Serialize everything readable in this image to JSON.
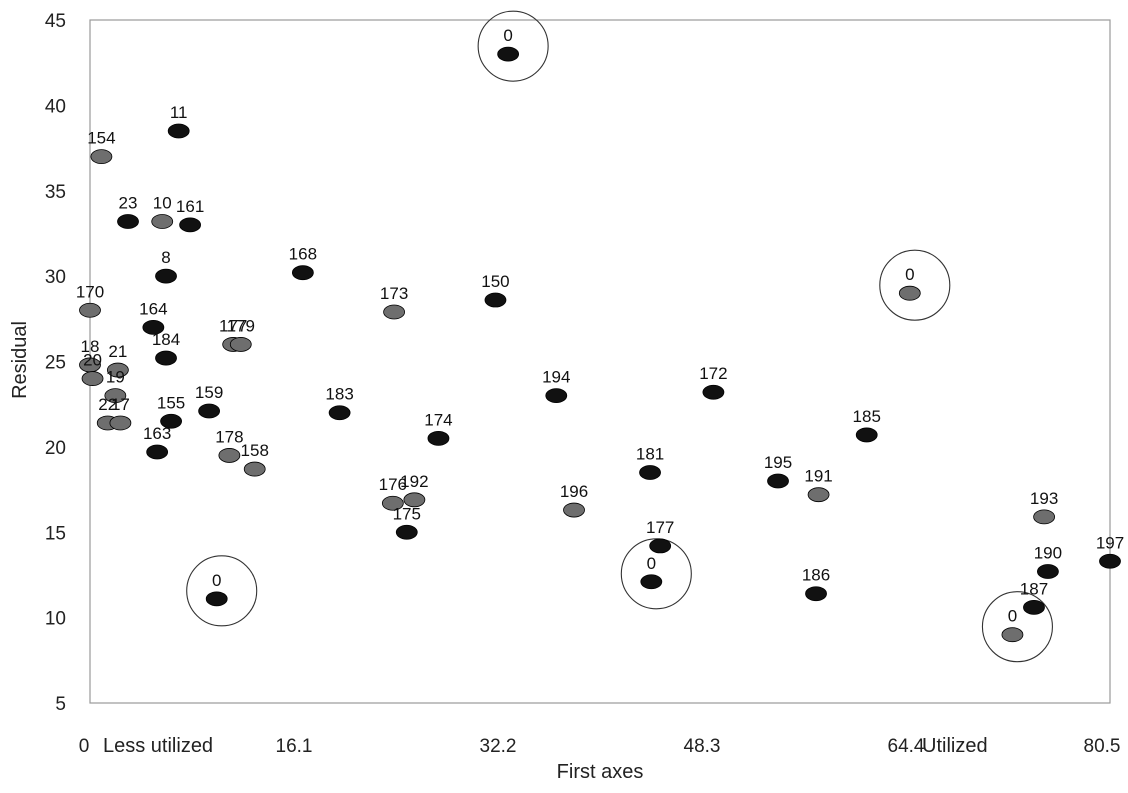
{
  "chart_data": {
    "type": "scatter",
    "xlabel": "First axes",
    "ylabel": "Residual",
    "xlim": [
      0,
      80.5
    ],
    "ylim": [
      5,
      45
    ],
    "x_ticks": [
      "0",
      "16.1",
      "32.2",
      "48.3",
      "64.4",
      "80.5"
    ],
    "y_ticks": [
      "5",
      "10",
      "15",
      "20",
      "25",
      "30",
      "35",
      "40",
      "45"
    ],
    "annotations": [
      "Less utilized",
      "Utilized"
    ],
    "grid": false,
    "colors": {
      "dark": "#111111",
      "grey": "#6e6e6e",
      "circle": "#333333"
    },
    "points": [
      {
        "label": "0",
        "x": 33.0,
        "y": 43.0,
        "tone": "dark",
        "circled": true
      },
      {
        "label": "11",
        "x": 7.0,
        "y": 38.5,
        "tone": "dark"
      },
      {
        "label": "154",
        "x": 0.9,
        "y": 37.0,
        "tone": "grey"
      },
      {
        "label": "23",
        "x": 3.0,
        "y": 33.2,
        "tone": "dark"
      },
      {
        "label": "10",
        "x": 5.7,
        "y": 33.2,
        "tone": "grey"
      },
      {
        "label": "161",
        "x": 7.9,
        "y": 33.0,
        "tone": "dark"
      },
      {
        "label": "8",
        "x": 6.0,
        "y": 30.0,
        "tone": "dark"
      },
      {
        "label": "168",
        "x": 16.8,
        "y": 30.2,
        "tone": "dark"
      },
      {
        "label": "150",
        "x": 32.0,
        "y": 28.6,
        "tone": "dark"
      },
      {
        "label": "0",
        "x": 64.7,
        "y": 29.0,
        "tone": "grey",
        "circled": true
      },
      {
        "label": "170",
        "x": 0.0,
        "y": 28.0,
        "tone": "grey"
      },
      {
        "label": "173",
        "x": 24.0,
        "y": 27.9,
        "tone": "grey"
      },
      {
        "label": "164",
        "x": 5.0,
        "y": 27.0,
        "tone": "dark"
      },
      {
        "label": "177",
        "x": 11.3,
        "y": 26.0,
        "tone": "grey"
      },
      {
        "label": "179",
        "x": 11.9,
        "y": 26.0,
        "tone": "grey"
      },
      {
        "label": "184",
        "x": 6.0,
        "y": 25.2,
        "tone": "dark"
      },
      {
        "label": "18",
        "x": 0.0,
        "y": 24.8,
        "tone": "grey"
      },
      {
        "label": "20",
        "x": 0.2,
        "y": 24.0,
        "tone": "grey"
      },
      {
        "label": "21",
        "x": 2.2,
        "y": 24.5,
        "tone": "grey"
      },
      {
        "label": "19",
        "x": 2.0,
        "y": 23.0,
        "tone": "grey"
      },
      {
        "label": "194",
        "x": 36.8,
        "y": 23.0,
        "tone": "dark"
      },
      {
        "label": "172",
        "x": 49.2,
        "y": 23.2,
        "tone": "dark"
      },
      {
        "label": "159",
        "x": 9.4,
        "y": 22.1,
        "tone": "dark"
      },
      {
        "label": "183",
        "x": 19.7,
        "y": 22.0,
        "tone": "dark"
      },
      {
        "label": "22",
        "x": 1.4,
        "y": 21.4,
        "tone": "grey"
      },
      {
        "label": "17",
        "x": 2.4,
        "y": 21.4,
        "tone": "grey"
      },
      {
        "label": "155",
        "x": 6.4,
        "y": 21.5,
        "tone": "dark"
      },
      {
        "label": "185",
        "x": 61.3,
        "y": 20.7,
        "tone": "dark"
      },
      {
        "label": "174",
        "x": 27.5,
        "y": 20.5,
        "tone": "dark"
      },
      {
        "label": "163",
        "x": 5.3,
        "y": 19.7,
        "tone": "dark"
      },
      {
        "label": "178",
        "x": 11.0,
        "y": 19.5,
        "tone": "grey"
      },
      {
        "label": "158",
        "x": 13.0,
        "y": 18.7,
        "tone": "grey"
      },
      {
        "label": "181",
        "x": 44.2,
        "y": 18.5,
        "tone": "dark"
      },
      {
        "label": "195",
        "x": 54.3,
        "y": 18.0,
        "tone": "dark"
      },
      {
        "label": "191",
        "x": 57.5,
        "y": 17.2,
        "tone": "grey"
      },
      {
        "label": "176",
        "x": 23.9,
        "y": 16.7,
        "tone": "grey"
      },
      {
        "label": "192",
        "x": 25.6,
        "y": 16.9,
        "tone": "grey"
      },
      {
        "label": "196",
        "x": 38.2,
        "y": 16.3,
        "tone": "grey"
      },
      {
        "label": "193",
        "x": 75.3,
        "y": 15.9,
        "tone": "grey"
      },
      {
        "label": "175",
        "x": 25.0,
        "y": 15.0,
        "tone": "dark"
      },
      {
        "label": "177",
        "x": 45.0,
        "y": 14.2,
        "tone": "dark"
      },
      {
        "label": "197",
        "x": 80.5,
        "y": 13.3,
        "tone": "dark"
      },
      {
        "label": "190",
        "x": 75.6,
        "y": 12.7,
        "tone": "dark"
      },
      {
        "label": "0",
        "x": 44.3,
        "y": 12.1,
        "tone": "dark",
        "circled": true
      },
      {
        "label": "186",
        "x": 57.3,
        "y": 11.4,
        "tone": "dark"
      },
      {
        "label": "0",
        "x": 10.0,
        "y": 11.1,
        "tone": "dark",
        "circled": true
      },
      {
        "label": "187",
        "x": 74.5,
        "y": 10.6,
        "tone": "dark"
      },
      {
        "label": "0",
        "x": 72.8,
        "y": 9.0,
        "tone": "grey",
        "circled": true
      }
    ]
  }
}
